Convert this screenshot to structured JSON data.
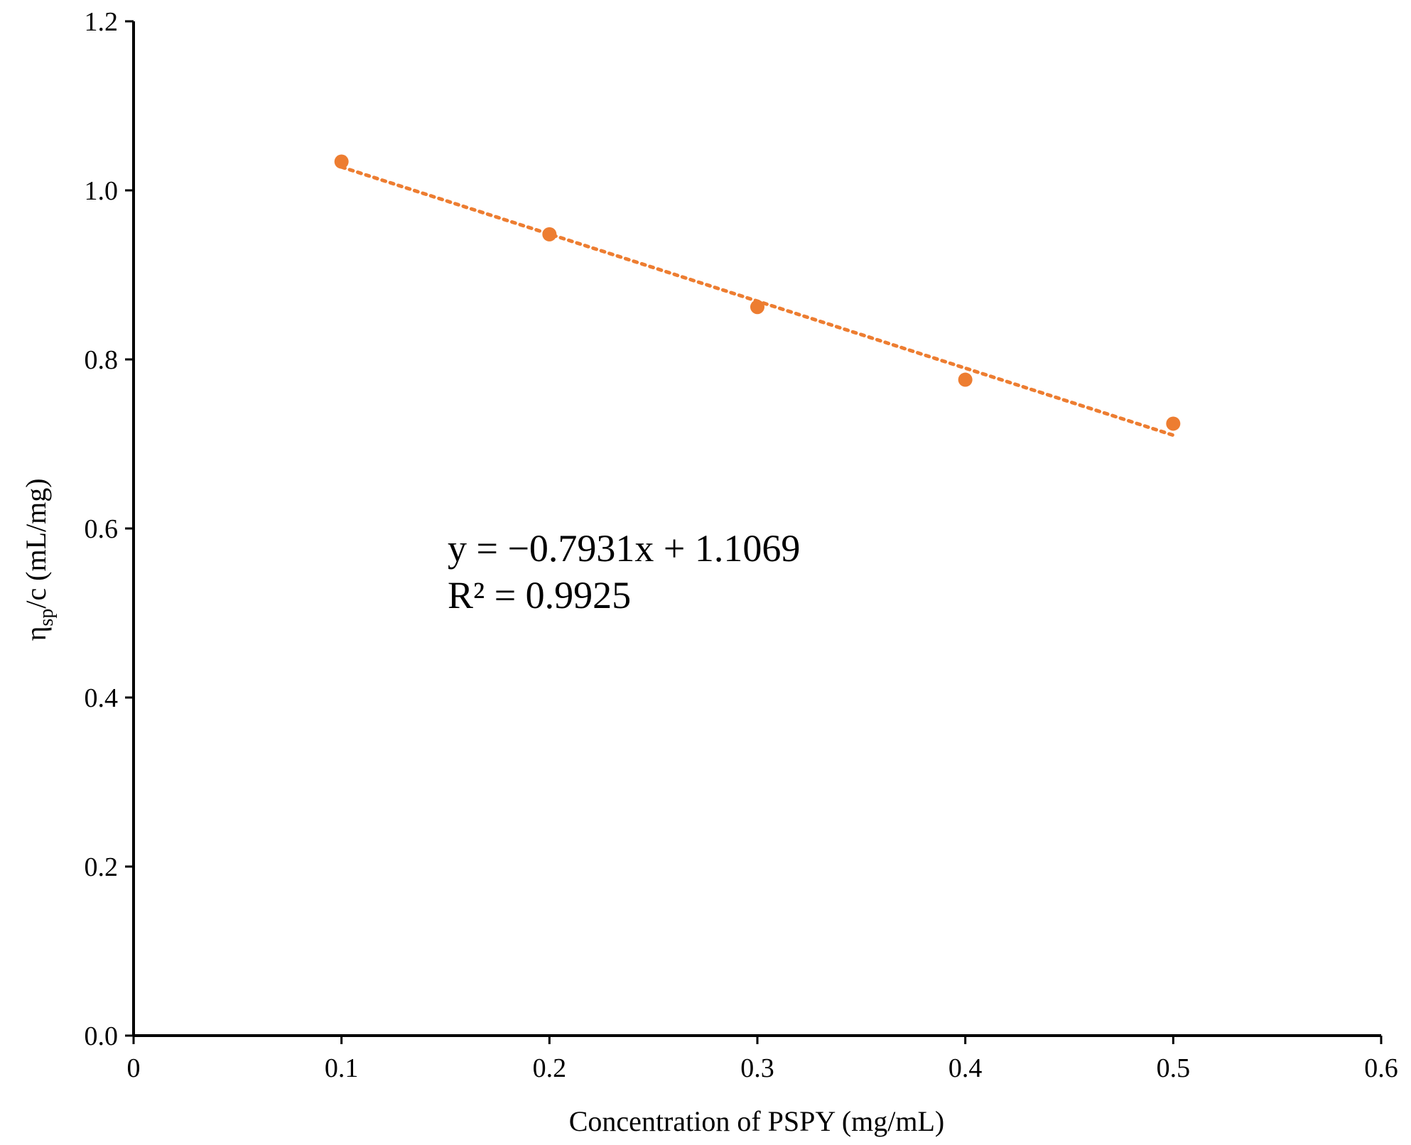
{
  "chart_data": {
    "type": "scatter",
    "xlabel": "Concentration of PSPY (mg/mL)",
    "ylabel_main": "η",
    "ylabel_sub": "sp",
    "ylabel_rest": "/c (mL/mg)",
    "xlim": [
      0,
      0.6
    ],
    "ylim": [
      0,
      1.2
    ],
    "x_ticks": [
      0,
      0.1,
      0.2,
      0.3,
      0.4,
      0.5,
      0.6
    ],
    "x_tick_labels": [
      "0",
      "0.1",
      "0.2",
      "0.3",
      "0.4",
      "0.5",
      "0.6"
    ],
    "y_ticks": [
      0,
      0.2,
      0.4,
      0.6,
      0.8,
      1.0,
      1.2
    ],
    "y_tick_labels": [
      "0.0",
      "0.2",
      "0.4",
      "0.6",
      "0.8",
      "1.0",
      "1.2"
    ],
    "grid": false,
    "legend": "none",
    "series": [
      {
        "x": [
          0.1,
          0.2,
          0.3,
          0.4,
          0.5
        ],
        "y": [
          1.034,
          0.948,
          0.862,
          0.776,
          0.724
        ],
        "color": "#ED7D31"
      }
    ],
    "trendline": {
      "kind": "linear",
      "style": "dotted",
      "color": "#ED7D31",
      "slope": -0.7931,
      "intercept": 1.1069,
      "x_range": [
        0.1,
        0.5
      ]
    },
    "annotations": {
      "equation": "y = −0.7931x + 1.1069",
      "r_squared": "R² = 0.9925"
    }
  }
}
